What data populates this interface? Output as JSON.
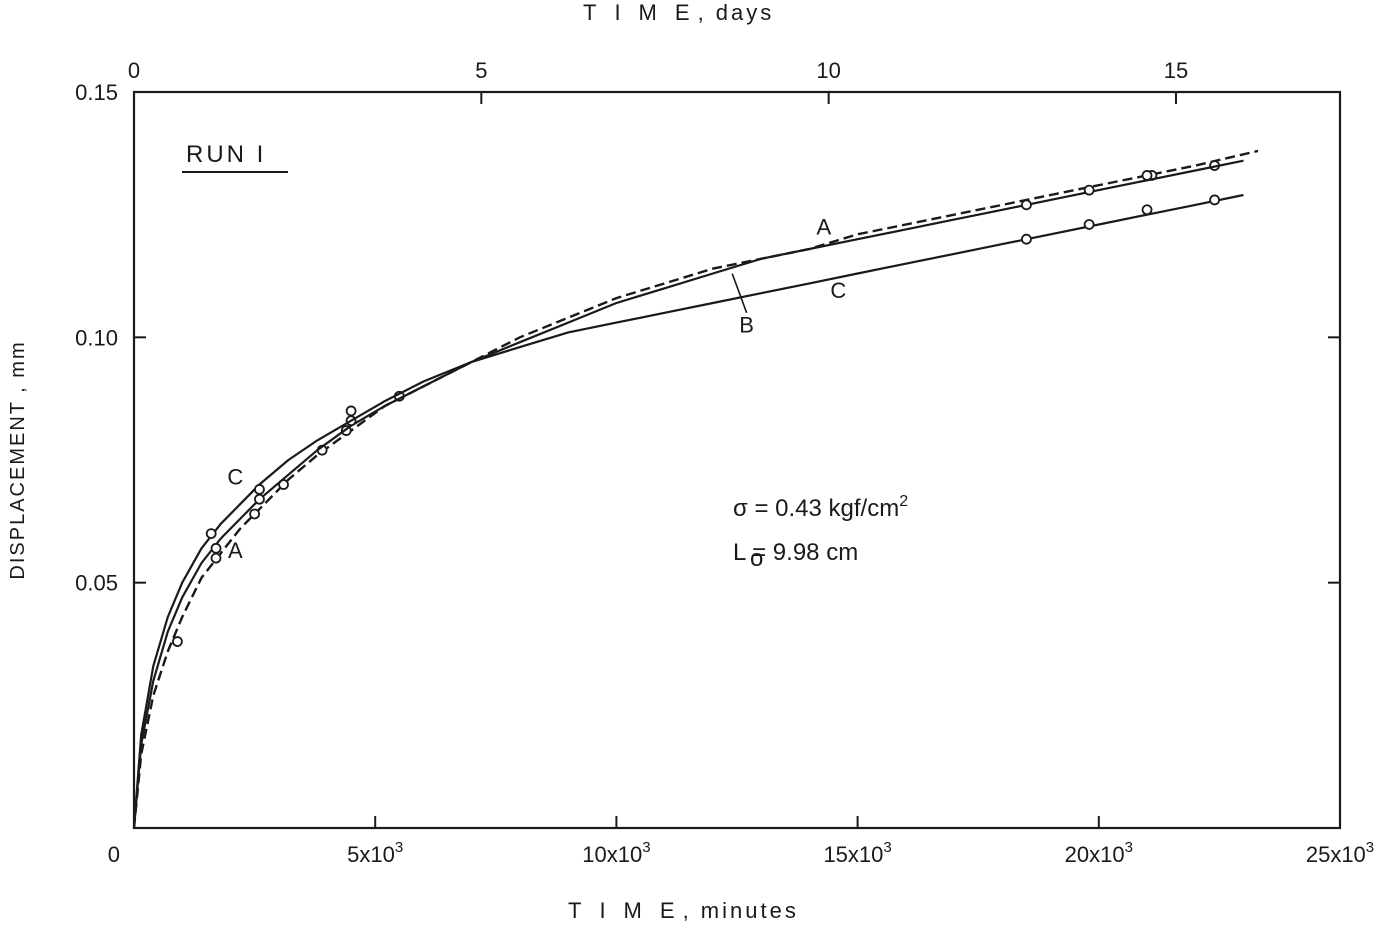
{
  "chart_data": {
    "type": "line",
    "title": "RUN I",
    "xlabel": "T I M E , minutes",
    "xlabel_parts": {
      "word": "TIME",
      "unit": ", minutes"
    },
    "x2label_parts": {
      "word": "TIME",
      "unit": ", days"
    },
    "ylabel": "DISPLACEMENT , mm",
    "xlim": [
      0,
      25000
    ],
    "ylim": [
      0,
      0.15
    ],
    "x_ticks": [
      {
        "value": 0,
        "label": "0"
      },
      {
        "value": 5000,
        "label": "5x10",
        "sup": "3"
      },
      {
        "value": 10000,
        "label": "10x10",
        "sup": "3"
      },
      {
        "value": 15000,
        "label": "15x10",
        "sup": "3"
      },
      {
        "value": 20000,
        "label": "20x10",
        "sup": "3"
      },
      {
        "value": 25000,
        "label": "25x10",
        "sup": "3"
      }
    ],
    "x2_ticks": [
      {
        "value": 0,
        "label": "0"
      },
      {
        "value": 5,
        "label": "5"
      },
      {
        "value": 10,
        "label": "10"
      },
      {
        "value": 15,
        "label": "15"
      }
    ],
    "y_ticks": [
      {
        "value": 0.05,
        "label": "0.05"
      },
      {
        "value": 0.1,
        "label": "0.10"
      },
      {
        "value": 0.15,
        "label": "0.15"
      }
    ],
    "grid": false,
    "annotations": {
      "sigma": "σ = 0.43 kgf/cm",
      "sigma_sup": "2",
      "length": "L = 9.98 cm",
      "length_sub": "o"
    },
    "series": [
      {
        "label": "A",
        "style": "dashed",
        "x": [
          0,
          150,
          400,
          700,
          1000,
          1400,
          1800,
          2200,
          2600,
          3200,
          3800,
          4500,
          5200,
          6000,
          7000,
          8000,
          9000,
          10000,
          11000,
          12000,
          13000,
          14000,
          15000,
          16000,
          17000,
          18000,
          19000,
          20000,
          21000,
          22000,
          23300
        ],
        "y": [
          0,
          0.015,
          0.027,
          0.036,
          0.043,
          0.051,
          0.056,
          0.061,
          0.065,
          0.071,
          0.076,
          0.081,
          0.086,
          0.09,
          0.095,
          0.1,
          0.104,
          0.108,
          0.111,
          0.114,
          0.116,
          0.118,
          0.121,
          0.123,
          0.125,
          0.127,
          0.129,
          0.131,
          0.133,
          0.135,
          0.138
        ],
        "points_x": [
          900,
          1700,
          2500,
          3100,
          3900,
          4400,
          5500,
          21100,
          22400
        ],
        "points_y": [
          0.038,
          0.055,
          0.064,
          0.07,
          0.077,
          0.081,
          0.088,
          0.133,
          0.135
        ]
      },
      {
        "label": "B",
        "style": "solid",
        "x": [
          0,
          150,
          400,
          700,
          1000,
          1400,
          1800,
          2200,
          2600,
          3200,
          3800,
          4500,
          5200,
          6000,
          7000,
          8000,
          9000,
          10000,
          11000,
          12000,
          13000,
          14000,
          15000,
          16000,
          17000,
          18000,
          19000,
          20000,
          21000,
          22000,
          23000
        ],
        "y": [
          0,
          0.017,
          0.03,
          0.04,
          0.047,
          0.054,
          0.059,
          0.063,
          0.067,
          0.072,
          0.077,
          0.082,
          0.086,
          0.09,
          0.095,
          0.099,
          0.103,
          0.107,
          0.11,
          0.113,
          0.116,
          0.118,
          0.12,
          0.122,
          0.124,
          0.126,
          0.128,
          0.13,
          0.132,
          0.134,
          0.136
        ],
        "points_x": [
          1700,
          2600,
          4500,
          18500,
          19800,
          21000
        ],
        "points_y": [
          0.057,
          0.067,
          0.083,
          0.127,
          0.13,
          0.133
        ]
      },
      {
        "label": "C",
        "style": "solid",
        "x": [
          0,
          150,
          400,
          700,
          1000,
          1400,
          1800,
          2200,
          2600,
          3200,
          3800,
          4500,
          5200,
          6000,
          7000,
          8000,
          9000,
          10000,
          11000,
          12000,
          13000,
          14000,
          15000,
          16000,
          17000,
          18000,
          19000,
          20000,
          21000,
          22000,
          23000
        ],
        "y": [
          0,
          0.019,
          0.033,
          0.043,
          0.05,
          0.057,
          0.062,
          0.066,
          0.07,
          0.075,
          0.079,
          0.083,
          0.087,
          0.091,
          0.095,
          0.098,
          0.101,
          0.103,
          0.105,
          0.107,
          0.109,
          0.111,
          0.113,
          0.115,
          0.117,
          0.119,
          0.121,
          0.123,
          0.125,
          0.127,
          0.129
        ],
        "points_x": [
          1600,
          2600,
          4500,
          18500,
          19800,
          21000,
          22400
        ],
        "points_y": [
          0.06,
          0.069,
          0.085,
          0.12,
          0.123,
          0.126,
          0.128
        ]
      }
    ],
    "curve_labels": [
      {
        "text": "A",
        "x": 14300,
        "y": 0.121
      },
      {
        "text": "B",
        "x": 12700,
        "y": 0.101
      },
      {
        "text": "C",
        "x": 14600,
        "y": 0.108
      },
      {
        "text": "C",
        "x": 2100,
        "y": 0.07
      },
      {
        "text": "A",
        "x": 2100,
        "y": 0.055
      }
    ]
  }
}
